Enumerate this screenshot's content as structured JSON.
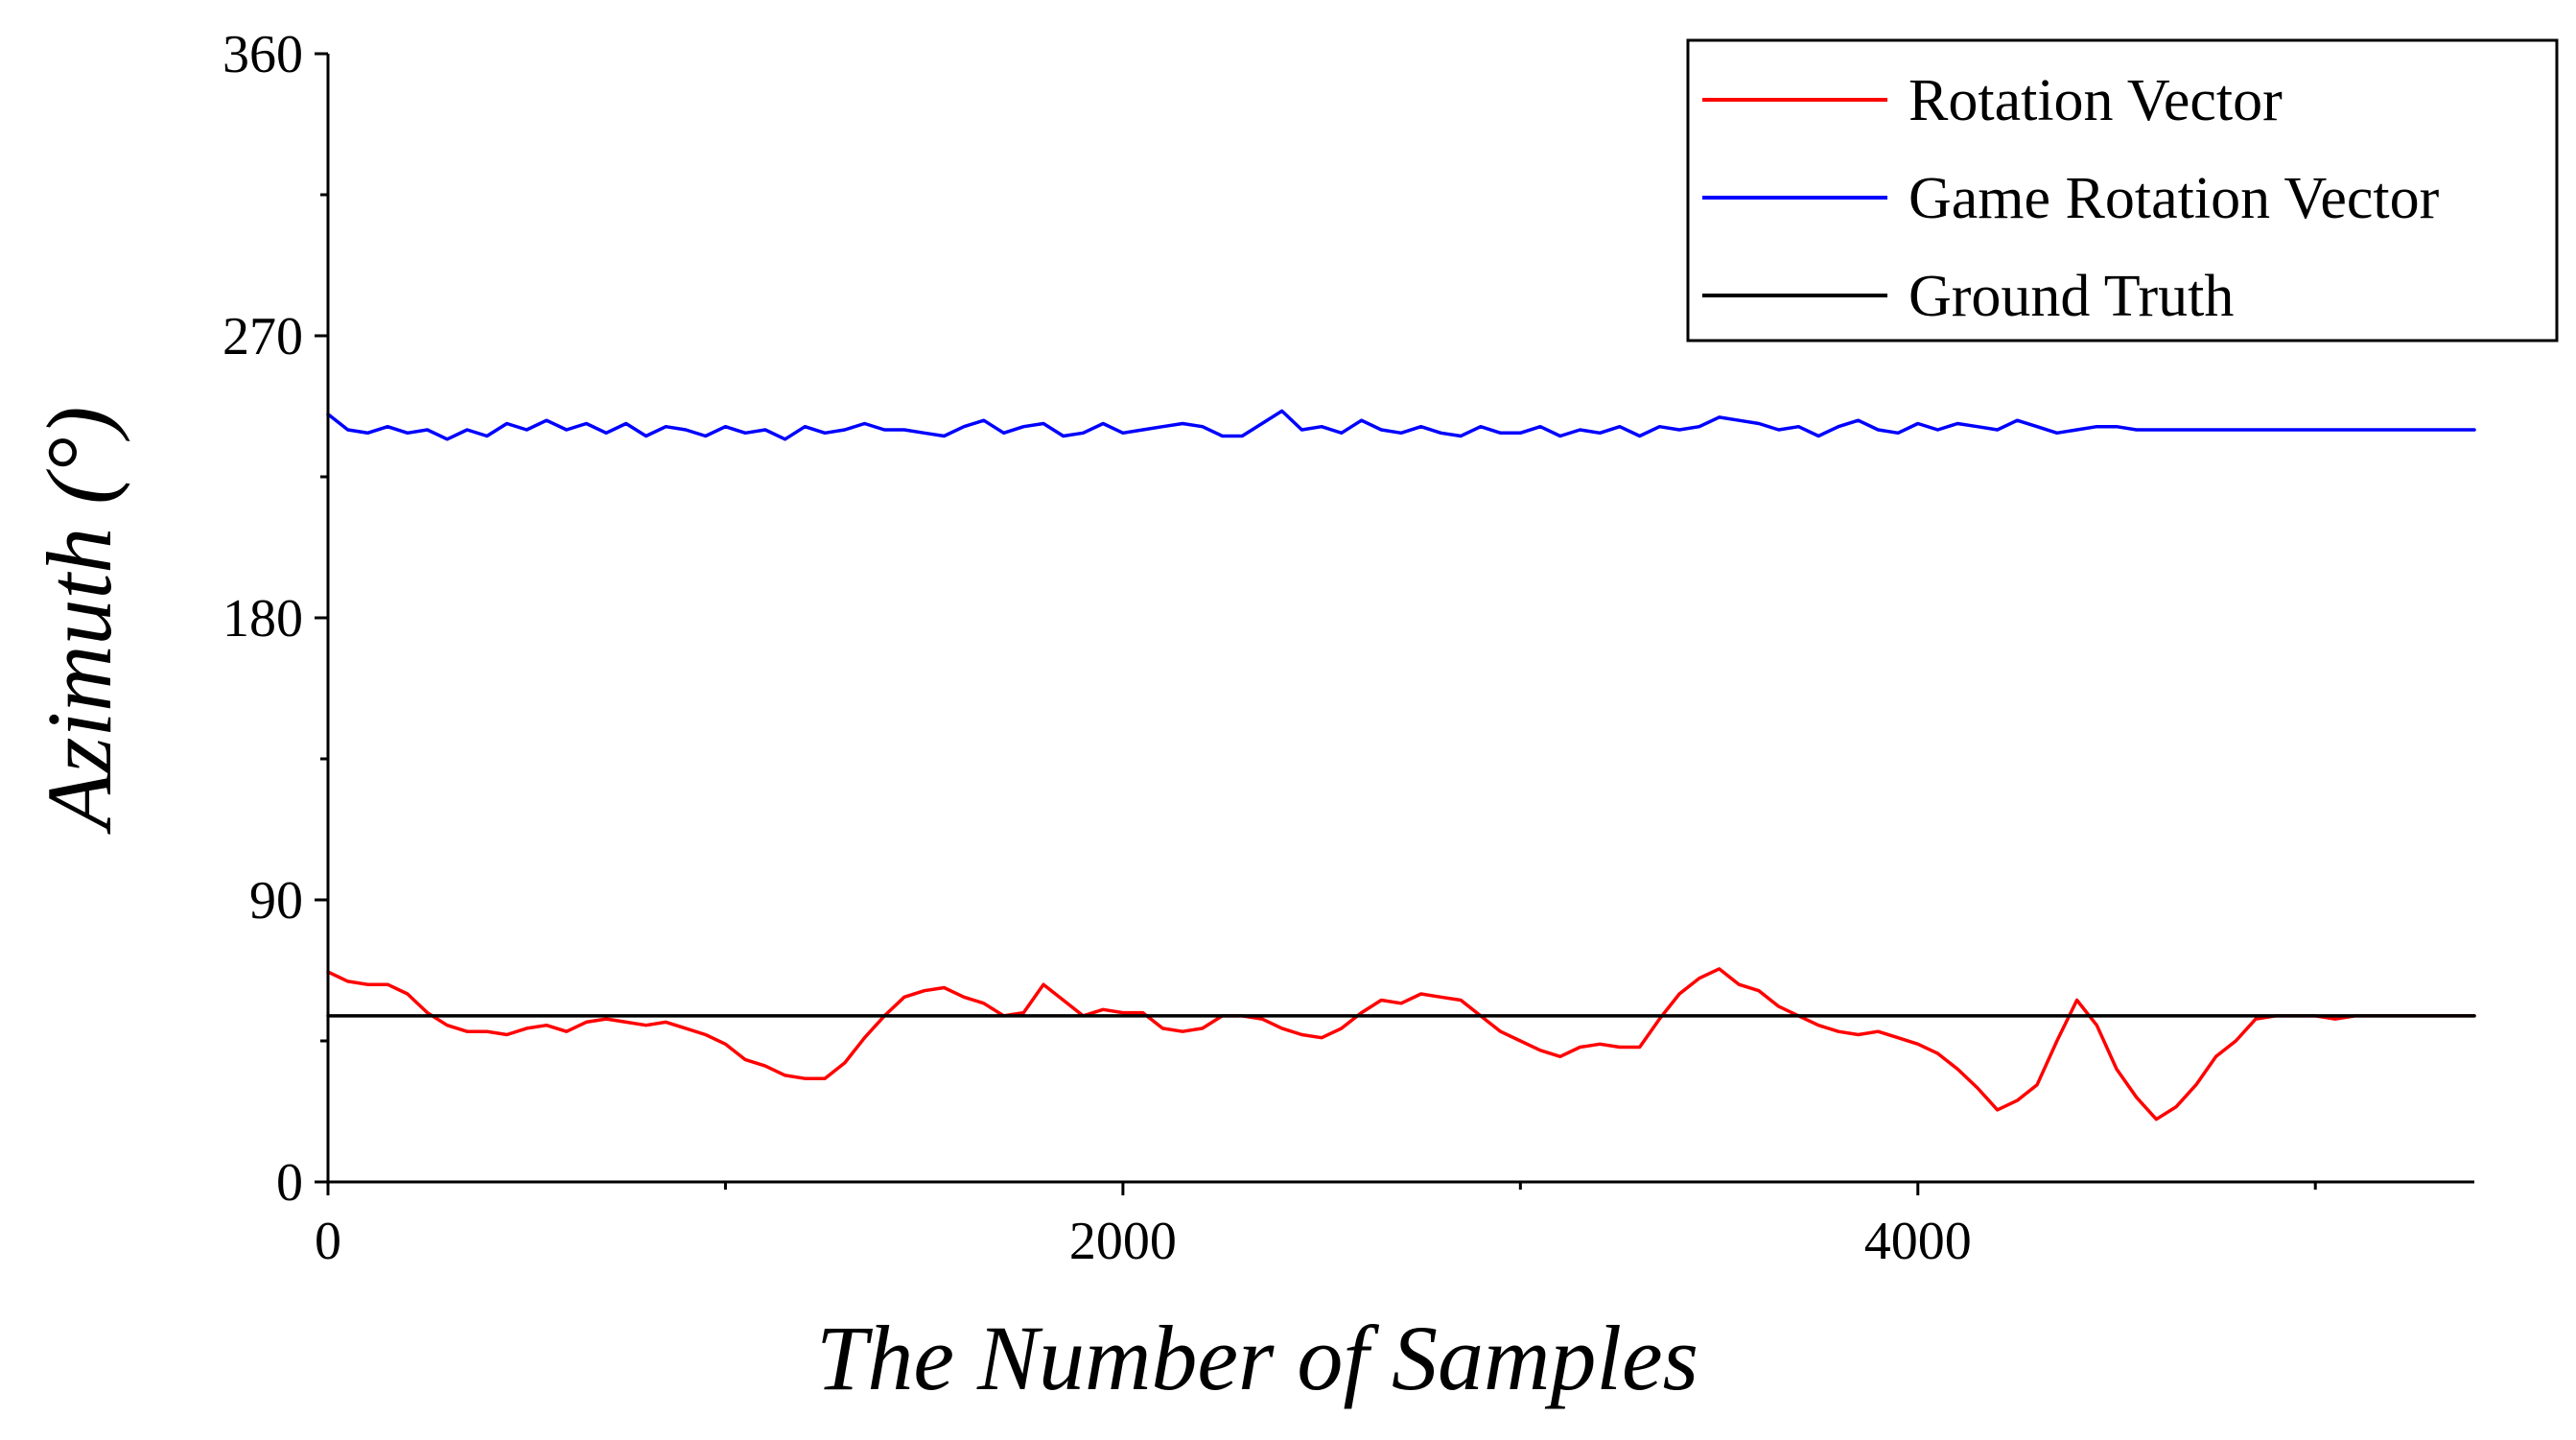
{
  "chart_data": {
    "type": "line",
    "title": "",
    "xlabel": "The Number of Samples",
    "ylabel": "Azimuth (°)",
    "xlim": [
      0,
      5400
    ],
    "ylim": [
      0,
      360
    ],
    "xticks": [
      0,
      2000,
      4000
    ],
    "yticks": [
      0,
      90,
      180,
      270,
      360
    ],
    "x_minor_step": 1000,
    "y_minor_step": 45,
    "legend_position": "top-right",
    "grid": false,
    "series": [
      {
        "name": "Rotation Vector",
        "color": "#ff0000",
        "x": [
          0,
          50,
          100,
          150,
          200,
          250,
          300,
          350,
          400,
          450,
          500,
          550,
          600,
          650,
          700,
          750,
          800,
          850,
          900,
          950,
          1000,
          1050,
          1100,
          1150,
          1200,
          1250,
          1300,
          1350,
          1400,
          1450,
          1500,
          1550,
          1600,
          1650,
          1700,
          1750,
          1800,
          1850,
          1900,
          1950,
          2000,
          2050,
          2100,
          2150,
          2200,
          2250,
          2300,
          2350,
          2400,
          2450,
          2500,
          2550,
          2600,
          2650,
          2700,
          2750,
          2800,
          2850,
          2900,
          2950,
          3000,
          3050,
          3100,
          3150,
          3200,
          3250,
          3300,
          3350,
          3400,
          3450,
          3500,
          3550,
          3600,
          3650,
          3700,
          3750,
          3800,
          3850,
          3900,
          3950,
          4000,
          4050,
          4100,
          4150,
          4200,
          4250,
          4300,
          4350,
          4400,
          4450,
          4500,
          4550,
          4600,
          4650,
          4700,
          4750,
          4800,
          4850,
          4900,
          4950,
          5000,
          5050,
          5100,
          5150,
          5200,
          5250,
          5300,
          5350,
          5400
        ],
        "values": [
          67,
          64,
          63,
          63,
          60,
          54,
          50,
          48,
          48,
          47,
          49,
          50,
          48,
          51,
          52,
          51,
          50,
          51,
          49,
          47,
          44,
          39,
          37,
          34,
          33,
          33,
          38,
          46,
          53,
          59,
          61,
          62,
          59,
          57,
          53,
          54,
          63,
          58,
          53,
          55,
          54,
          54,
          49,
          48,
          49,
          53,
          53,
          52,
          49,
          47,
          46,
          49,
          54,
          58,
          57,
          60,
          59,
          58,
          53,
          48,
          45,
          42,
          40,
          43,
          44,
          43,
          43,
          52,
          60,
          65,
          68,
          63,
          61,
          56,
          53,
          50,
          48,
          47,
          48,
          46,
          44,
          41,
          36,
          30,
          23,
          26,
          31,
          45,
          58,
          50,
          36,
          27,
          20,
          24,
          31,
          40,
          45,
          52,
          53,
          53,
          53,
          52,
          53,
          53,
          53,
          53,
          53,
          53,
          53
        ]
      },
      {
        "name": "Game Rotation Vector",
        "color": "#0000ff",
        "x": [
          0,
          50,
          100,
          150,
          200,
          250,
          300,
          350,
          400,
          450,
          500,
          550,
          600,
          650,
          700,
          750,
          800,
          850,
          900,
          950,
          1000,
          1050,
          1100,
          1150,
          1200,
          1250,
          1300,
          1350,
          1400,
          1450,
          1500,
          1550,
          1600,
          1650,
          1700,
          1750,
          1800,
          1850,
          1900,
          1950,
          2000,
          2050,
          2100,
          2150,
          2200,
          2250,
          2300,
          2350,
          2400,
          2450,
          2500,
          2550,
          2600,
          2650,
          2700,
          2750,
          2800,
          2850,
          2900,
          2950,
          3000,
          3050,
          3100,
          3150,
          3200,
          3250,
          3300,
          3350,
          3400,
          3450,
          3500,
          3550,
          3600,
          3650,
          3700,
          3750,
          3800,
          3850,
          3900,
          3950,
          4000,
          4050,
          4100,
          4150,
          4200,
          4250,
          4300,
          4350,
          4400,
          4450,
          4500,
          4550,
          4600,
          4650,
          4700,
          4750,
          4800,
          4850,
          4900,
          4950,
          5000,
          5050,
          5100,
          5150,
          5200,
          5250,
          5300,
          5350,
          5400
        ],
        "values": [
          245,
          240,
          239,
          241,
          239,
          240,
          237,
          240,
          238,
          242,
          240,
          243,
          240,
          242,
          239,
          242,
          238,
          241,
          240,
          238,
          241,
          239,
          240,
          237,
          241,
          239,
          240,
          242,
          240,
          240,
          239,
          238,
          241,
          243,
          239,
          241,
          242,
          238,
          239,
          242,
          239,
          240,
          241,
          242,
          241,
          238,
          238,
          242,
          246,
          240,
          241,
          239,
          243,
          240,
          239,
          241,
          239,
          238,
          241,
          239,
          239,
          241,
          238,
          240,
          239,
          241,
          238,
          241,
          240,
          241,
          244,
          243,
          242,
          240,
          241,
          238,
          241,
          243,
          240,
          239,
          242,
          240,
          242,
          241,
          240,
          243,
          241,
          239,
          240,
          241,
          241,
          240,
          240,
          240,
          240,
          240,
          240,
          240,
          240,
          240,
          240,
          240,
          240,
          240,
          240,
          240,
          240,
          240,
          240
        ]
      },
      {
        "name": "Ground Truth",
        "color": "#000000",
        "x": [
          0,
          5400
        ],
        "values": [
          53,
          53
        ]
      }
    ]
  }
}
